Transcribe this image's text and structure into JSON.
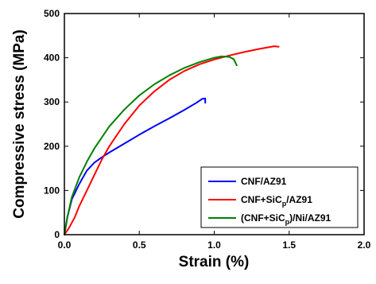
{
  "chart_data": {
    "type": "line",
    "xlabel": "Strain (%)",
    "ylabel": "Compressive stress (MPa)",
    "xlim": [
      0.0,
      2.0
    ],
    "ylim": [
      0,
      500
    ],
    "x_ticks": [
      "0.0",
      "0.5",
      "1.0",
      "1.5",
      "2.0"
    ],
    "y_ticks": [
      "0",
      "100",
      "200",
      "300",
      "400",
      "500"
    ],
    "x_tick_values": [
      0.0,
      0.5,
      1.0,
      1.5,
      2.0
    ],
    "y_tick_values": [
      0,
      100,
      200,
      300,
      400,
      500
    ],
    "grid": false,
    "legend_position": "bottom-right",
    "series": [
      {
        "name": "CNF/AZ91",
        "legend": {
          "main": "CNF/AZ91",
          "sub": "",
          "tail": ""
        },
        "color": "#0000ff",
        "x": [
          0.0,
          0.02,
          0.05,
          0.1,
          0.15,
          0.2,
          0.25,
          0.3,
          0.4,
          0.5,
          0.6,
          0.7,
          0.8,
          0.88,
          0.92,
          0.94,
          0.94
        ],
        "y": [
          0,
          40,
          80,
          115,
          145,
          163,
          175,
          186,
          206,
          226,
          245,
          263,
          282,
          298,
          307,
          308,
          298
        ]
      },
      {
        "name": "CNF+SiCp/AZ91",
        "legend": {
          "main": "CNF+SiC",
          "sub": "p",
          "tail": "/AZ91"
        },
        "color": "#ff0000",
        "x": [
          0.0,
          0.03,
          0.07,
          0.1,
          0.15,
          0.2,
          0.25,
          0.3,
          0.4,
          0.5,
          0.6,
          0.7,
          0.8,
          0.9,
          1.0,
          1.1,
          1.2,
          1.3,
          1.4,
          1.43
        ],
        "y": [
          0,
          15,
          40,
          65,
          100,
          135,
          170,
          200,
          250,
          292,
          324,
          350,
          370,
          385,
          396,
          405,
          413,
          420,
          426,
          425
        ]
      },
      {
        "name": "(CNF+SiCp)/Ni/AZ91",
        "legend": {
          "main": "(CNF+SiC",
          "sub": "p",
          "tail": ")/Ni/AZ91"
        },
        "color": "#008000",
        "x": [
          0.0,
          0.02,
          0.05,
          0.1,
          0.15,
          0.2,
          0.3,
          0.4,
          0.5,
          0.6,
          0.7,
          0.8,
          0.9,
          1.0,
          1.05,
          1.1,
          1.13,
          1.15
        ],
        "y": [
          0,
          40,
          85,
          130,
          165,
          195,
          245,
          283,
          315,
          340,
          360,
          377,
          390,
          400,
          403,
          402,
          397,
          383
        ]
      }
    ]
  }
}
